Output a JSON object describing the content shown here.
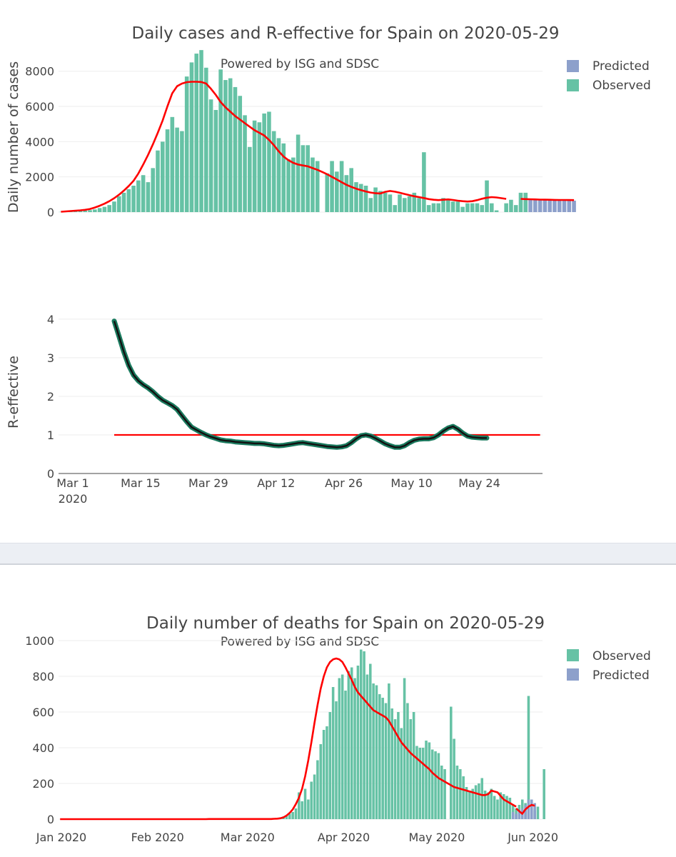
{
  "colors": {
    "observed": "#66c2a5",
    "predicted": "#8da0cb",
    "smooth": "#ff0000",
    "r_band": "#1a7a5e",
    "r_line": "#111111",
    "ref_line": "#ff0000"
  },
  "chart_data": [
    {
      "id": "cases",
      "type": "bar",
      "title": "Daily cases and R-effective for Spain on 2020-05-29",
      "subtitle": "Powered by ISG and SDSC",
      "ylabel": "Daily number of cases",
      "xlabel": "",
      "ylim": [
        0,
        8800
      ],
      "yticks": [
        0,
        2000,
        4000,
        6000,
        8000
      ],
      "ytick_labels": [
        "0",
        "2000",
        "4000",
        "6000",
        "8000"
      ],
      "grid": true,
      "legend": {
        "position": "top-right",
        "entries": [
          {
            "name": "Predicted",
            "color": "#8da0cb"
          },
          {
            "name": "Observed",
            "color": "#66c2a5"
          }
        ]
      },
      "x_start": "2020-03-01",
      "series": [
        {
          "name": "Observed",
          "start_day": 0,
          "values": [
            10,
            20,
            30,
            50,
            60,
            80,
            110,
            150,
            230,
            300,
            400,
            600,
            900,
            1100,
            1300,
            1500,
            1800,
            2100,
            1700,
            2500,
            3500,
            4000,
            4700,
            5400,
            4800,
            4600,
            7700,
            8500,
            9000,
            9200,
            8200,
            6400,
            5800,
            8100,
            7500,
            7600,
            7100,
            6600,
            5500,
            3700,
            5200,
            5100,
            5600,
            5700,
            4600,
            4200,
            3900,
            3000,
            3100,
            4400,
            3800,
            3800,
            3100,
            2900,
            0,
            2200,
            2900,
            2300,
            2900,
            2100,
            2500,
            1700,
            1600,
            1500,
            800,
            1400,
            1200,
            1100,
            1000,
            400,
            1000,
            800,
            900,
            1100,
            800,
            3400,
            400,
            500,
            500,
            800,
            700,
            600,
            600,
            300,
            500,
            500,
            500,
            400,
            1800,
            500,
            100,
            0,
            500,
            700,
            400,
            1100,
            1100
          ]
        },
        {
          "name": "Predicted",
          "start_day": 97,
          "values": [
            700,
            700,
            700,
            700,
            700,
            700,
            700,
            700,
            700,
            650
          ]
        },
        {
          "name": "Smoothed",
          "type": "line",
          "segments": [
            {
              "start_day": 0,
              "values": [
                20,
                40,
                60,
                80,
                100,
                130,
                180,
                260,
                360,
                480,
                620,
                790,
                990,
                1220,
                1480,
                1780,
                2200,
                2700,
                3250,
                3850,
                4500,
                5200,
                6000,
                6750,
                7150,
                7300,
                7380,
                7400,
                7400,
                7390,
                7300,
                7000,
                6650,
                6250,
                5950,
                5700,
                5450,
                5250,
                5050,
                4850,
                4650,
                4500,
                4350,
                4100,
                3800,
                3450,
                3150,
                2950,
                2800,
                2700,
                2650,
                2600,
                2500,
                2400,
                2280,
                2150,
                2000,
                1850,
                1700,
                1550,
                1430,
                1330,
                1250,
                1170,
                1110,
                1070,
                1060,
                1150,
                1200,
                1160,
                1100,
                1030,
                960,
                900,
                850,
                800,
                740,
                700,
                680,
                700,
                720,
                690,
                650,
                620,
                600,
                620,
                680,
                760,
                820,
                850,
                830,
                790,
                750
              ]
            },
            {
              "start_day": 95,
              "values": [
                750,
                740,
                730,
                720,
                710,
                705,
                700,
                695,
                690,
                690,
                685,
                680
              ]
            }
          ]
        }
      ]
    },
    {
      "id": "reff",
      "type": "line",
      "title": "",
      "ylabel": "R-effective",
      "xlabel": "",
      "ylim": [
        0,
        4.35
      ],
      "yticks": [
        0,
        1,
        2,
        3,
        4
      ],
      "ytick_labels": [
        "0",
        "1",
        "2",
        "3",
        "4"
      ],
      "grid": true,
      "x_ticks": [
        {
          "day": 0,
          "label": "Mar 1",
          "sublabel": "2020"
        },
        {
          "day": 14,
          "label": "Mar 15"
        },
        {
          "day": 28,
          "label": "Mar 29"
        },
        {
          "day": 42,
          "label": "Apr 12"
        },
        {
          "day": 56,
          "label": "Apr 26"
        },
        {
          "day": 70,
          "label": "May 10"
        },
        {
          "day": 84,
          "label": "May 24"
        }
      ],
      "series": [
        {
          "name": "R-effective",
          "start_day": 11,
          "values": [
            3.95,
            3.55,
            3.15,
            2.8,
            2.55,
            2.4,
            2.3,
            2.22,
            2.12,
            2.0,
            1.9,
            1.83,
            1.76,
            1.66,
            1.5,
            1.34,
            1.2,
            1.13,
            1.06,
            1.0,
            0.95,
            0.91,
            0.87,
            0.85,
            0.84,
            0.82,
            0.81,
            0.8,
            0.79,
            0.78,
            0.78,
            0.77,
            0.75,
            0.73,
            0.72,
            0.73,
            0.75,
            0.77,
            0.79,
            0.8,
            0.78,
            0.76,
            0.74,
            0.72,
            0.7,
            0.69,
            0.68,
            0.69,
            0.72,
            0.8,
            0.9,
            0.98,
            1.0,
            0.97,
            0.91,
            0.84,
            0.77,
            0.72,
            0.68,
            0.68,
            0.72,
            0.8,
            0.86,
            0.89,
            0.9,
            0.9,
            0.93,
            1.0,
            1.1,
            1.18,
            1.22,
            1.15,
            1.05,
            0.97,
            0.94,
            0.93,
            0.92,
            0.92
          ]
        },
        {
          "name": "R=1",
          "start_day": 11,
          "end_day": 99,
          "value": 1
        }
      ]
    },
    {
      "id": "deaths",
      "type": "bar",
      "title": "Daily number of deaths for Spain on 2020-05-29",
      "subtitle": "Powered by ISG and SDSC",
      "xlabel": "",
      "ylabel": "",
      "ylim": [
        0,
        1000
      ],
      "yticks": [
        0,
        200,
        400,
        600,
        800,
        1000
      ],
      "ytick_labels": [
        "0",
        "200",
        "400",
        "600",
        "800",
        "1000"
      ],
      "grid": true,
      "legend": {
        "position": "top-right",
        "entries": [
          {
            "name": "Observed",
            "color": "#66c2a5"
          },
          {
            "name": "Predicted",
            "color": "#8da0cb"
          }
        ]
      },
      "x_start": "2020-01-01",
      "x_ticks": [
        {
          "day": 0,
          "label": "Jan 2020"
        },
        {
          "day": 31,
          "label": "Feb 2020"
        },
        {
          "day": 60,
          "label": "Mar 2020"
        },
        {
          "day": 91,
          "label": "Apr 2020"
        },
        {
          "day": 121,
          "label": "May 2020"
        },
        {
          "day": 152,
          "label": "Jun 2020"
        }
      ],
      "series": [
        {
          "name": "Observed",
          "start_day": 70,
          "values": [
            5,
            10,
            15,
            20,
            30,
            40,
            60,
            150,
            100,
            170,
            110,
            210,
            250,
            330,
            420,
            500,
            520,
            600,
            740,
            660,
            790,
            810,
            720,
            830,
            850,
            790,
            860,
            950,
            940,
            810,
            870,
            760,
            750,
            700,
            680,
            650,
            760,
            620,
            560,
            600,
            510,
            790,
            650,
            560,
            600,
            410,
            400,
            400,
            440,
            430,
            390,
            380,
            370,
            300,
            280,
            0,
            630,
            450,
            300,
            280,
            240,
            180,
            160,
            170,
            190,
            200,
            230,
            160,
            150,
            170,
            130,
            110,
            150,
            140,
            130,
            120,
            80,
            60,
            80,
            110,
            90,
            690,
            60,
            50,
            70,
            0,
            280,
            0,
            0
          ]
        },
        {
          "name": "Predicted",
          "start_day": 146,
          "values": [
            40,
            30,
            50,
            60,
            80,
            110,
            110,
            90
          ]
        },
        {
          "name": "Smoothed",
          "type": "line",
          "segments": [
            {
              "start_day": 0,
              "values": [
                0,
                0,
                0,
                0,
                0,
                0,
                0,
                0,
                0,
                0,
                0,
                0,
                0,
                0,
                0,
                0,
                0,
                0,
                0,
                0,
                0,
                0,
                0,
                0,
                0,
                0,
                0,
                0,
                0,
                0,
                0,
                0,
                0,
                0,
                0,
                0,
                0,
                0,
                0,
                0,
                0,
                0,
                0,
                0,
                0,
                0,
                0,
                0,
                1,
                1,
                1,
                1,
                1,
                1,
                1,
                1,
                1,
                1,
                1,
                1,
                1,
                1,
                1,
                1,
                1,
                1,
                1,
                1,
                1,
                2,
                3,
                5,
                10,
                20,
                35,
                55,
                85,
                120,
                170,
                240,
                330,
                430,
                540,
                640,
                730,
                800,
                850,
                880,
                895,
                900,
                895,
                880,
                850,
                815,
                780,
                740,
                710,
                690,
                670,
                650,
                630,
                610,
                600,
                590,
                580,
                570,
                550,
                520,
                490,
                460,
                430,
                410,
                390,
                370,
                355,
                340,
                325,
                310,
                295,
                280,
                260,
                245,
                230,
                220,
                210,
                200,
                190,
                180,
                175,
                170,
                165,
                160,
                155,
                150,
                145,
                140,
                135,
                135,
                140,
                160,
                155,
                150,
                130,
                110,
                100,
                90,
                80,
                70
              ]
            },
            {
              "start_day": 147,
              "values": [
                60,
                45,
                30,
                55,
                70,
                80,
                75
              ]
            }
          ]
        }
      ]
    }
  ]
}
